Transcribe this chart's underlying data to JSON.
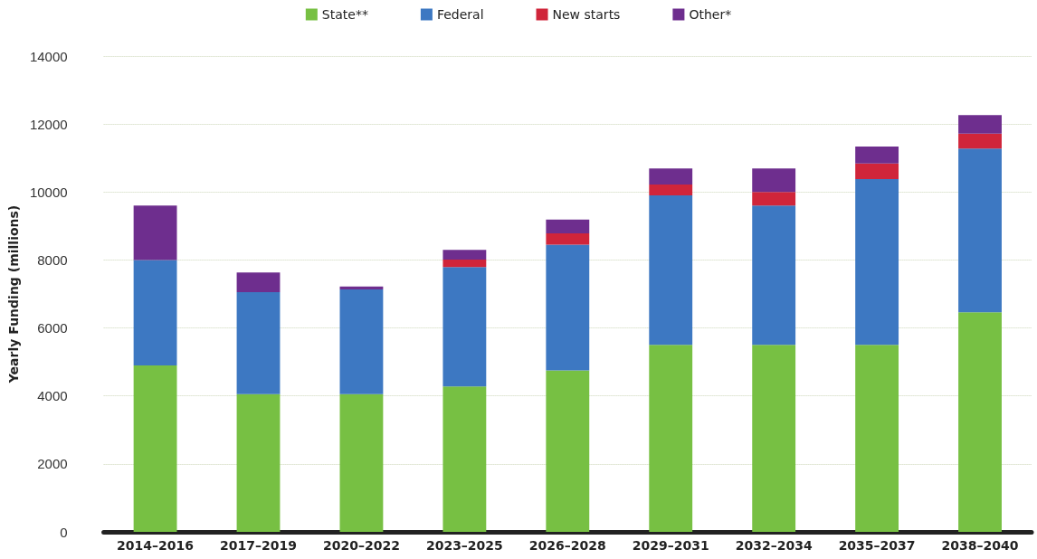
{
  "chart_data": {
    "type": "bar",
    "stacked": true,
    "ylabel": "Yearly Funding (millions)",
    "categories": [
      "2014–2016",
      "2017–2019",
      "2020–2022",
      "2023–2025",
      "2026–2028",
      "2029–2031",
      "2032–2034",
      "2035–2037",
      "2038–2040"
    ],
    "series": [
      {
        "name": "State**",
        "color": "#77c043",
        "values": [
          4900,
          4050,
          4050,
          4280,
          4750,
          5500,
          5500,
          5500,
          6460
        ]
      },
      {
        "name": "Federal",
        "color": "#3d78c2",
        "values": [
          3100,
          3000,
          3080,
          3510,
          3700,
          4400,
          4100,
          4880,
          4820
        ]
      },
      {
        "name": "New starts",
        "color": "#d0253a",
        "values": [
          0,
          0,
          0,
          220,
          330,
          320,
          400,
          460,
          440
        ]
      },
      {
        "name": "Other*",
        "color": "#6e2e8e",
        "values": [
          1600,
          580,
          90,
          290,
          410,
          470,
          690,
          500,
          540
        ]
      }
    ],
    "ylim": [
      0,
      14000
    ],
    "yticks": [
      0,
      2000,
      4000,
      6000,
      8000,
      10000,
      12000,
      14000
    ],
    "grid": "y",
    "legend": "top"
  }
}
